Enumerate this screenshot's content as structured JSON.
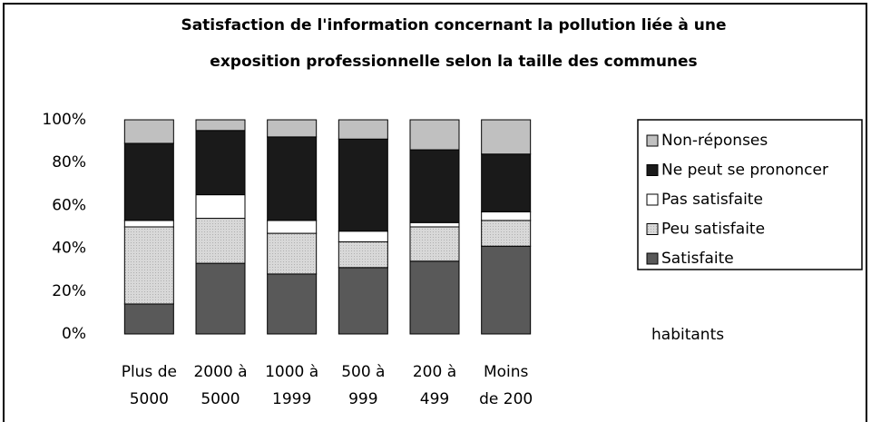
{
  "chart_data": {
    "type": "stacked_bar",
    "title": [
      "Satisfaction de l'information concernant la pollution liée à une",
      "exposition professionnelle selon la taille des communes"
    ],
    "categories": [
      [
        "Plus de",
        "5000"
      ],
      [
        "2000 à",
        "5000"
      ],
      [
        "1000 à",
        "1999"
      ],
      [
        "500 à",
        "999"
      ],
      [
        "200 à",
        "499"
      ],
      [
        "Moins",
        "de 200"
      ]
    ],
    "series": [
      {
        "name": "Satisfaite",
        "color": "#595959",
        "values": [
          14,
          33,
          28,
          31,
          34,
          41
        ]
      },
      {
        "name": "Peu satisfaite",
        "color": "#d4d4d4",
        "values": [
          36,
          21,
          19,
          12,
          16,
          12
        ]
      },
      {
        "name": "Pas satisfaite",
        "color": "#ffffff",
        "values": [
          3,
          11,
          6,
          5,
          2,
          4
        ]
      },
      {
        "name": "Ne peut se prononcer",
        "color": "#1a1a1a",
        "values": [
          36,
          30,
          39,
          43,
          34,
          27
        ]
      },
      {
        "name": "Non-réponses",
        "color": "#c0c0c0",
        "values": [
          11,
          5,
          8,
          9,
          14,
          16
        ]
      }
    ],
    "ylim": [
      0,
      100
    ],
    "yticks": [
      {
        "value": 0,
        "label": "0%"
      },
      {
        "value": 20,
        "label": "20%"
      },
      {
        "value": 40,
        "label": "40%"
      },
      {
        "value": 60,
        "label": "60%"
      },
      {
        "value": 80,
        "label": "80%"
      },
      {
        "value": 100,
        "label": "100%"
      }
    ],
    "annotation": "habitants",
    "legend": "right"
  }
}
